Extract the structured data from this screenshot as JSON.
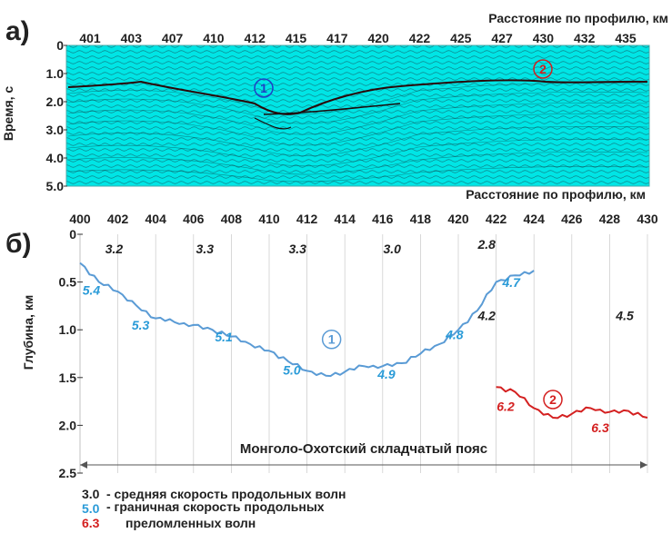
{
  "panel_a": {
    "letter": "а)",
    "axis_title_top": "Расстояние по профилю, км",
    "ylabel": "Время, с",
    "x_ticks": [
      "401",
      "403",
      "407",
      "410",
      "412",
      "415",
      "417",
      "420",
      "422",
      "425",
      "427",
      "430",
      "432",
      "435"
    ],
    "y_ticks": [
      "0",
      "1.0",
      "2.0",
      "3.0",
      "4.0",
      "5.0"
    ],
    "markers": [
      "1",
      "2"
    ],
    "colors": {
      "background": "#00e5e5",
      "marker_1": "#1e40c8",
      "marker_2": "#d02020"
    }
  },
  "panel_b": {
    "letter": "б)",
    "axis_title_top": "Расстояние по профилю, км",
    "ylabel": "Глубина, км",
    "belt_label": "Монголо-Охотский складчатый пояс",
    "x_ticks": [
      "400",
      "402",
      "404",
      "406",
      "408",
      "410",
      "412",
      "414",
      "416",
      "418",
      "420",
      "422",
      "424",
      "426",
      "428",
      "430"
    ],
    "y_ticks": [
      "0",
      "0.5",
      "1.0",
      "1.5",
      "2.0",
      "2.5"
    ],
    "avg_velocity_labels": [
      "3.2",
      "3.3",
      "3.3",
      "3.0",
      "2.8",
      "4.2",
      "4.5"
    ],
    "boundary_velocity_labels_1": [
      "5.4",
      "5.3",
      "5.1",
      "5.0",
      "4.9",
      "4.8",
      "4.7"
    ],
    "boundary_velocity_labels_2": [
      "6.2",
      "6.3"
    ],
    "markers": [
      "1",
      "2"
    ],
    "colors": {
      "line_1": "#5a9bd5",
      "line_2": "#d42020",
      "avg_text": "#222222",
      "v1_text": "#2a9bd8",
      "v2_text": "#d42020"
    }
  },
  "legend": {
    "items": [
      {
        "value": "3.0",
        "text": "- средняя скорость продольных волн"
      },
      {
        "value": "5.0",
        "text": "- граничная скорость продольных"
      },
      {
        "value": "6.3",
        "text": "преломленных волн"
      }
    ]
  },
  "chart_data": {
    "type": "line",
    "xlabel": "Расстояние по профилю, км",
    "ylabel": "Глубина, км",
    "xlim": [
      400,
      430
    ],
    "ylim": [
      2.5,
      0
    ],
    "series": [
      {
        "x": [
          400,
          401,
          402,
          403,
          404,
          405,
          406,
          407,
          408,
          409,
          410,
          411,
          412,
          413,
          414,
          415,
          416,
          417,
          418,
          419,
          420,
          421,
          422,
          423,
          424
        ],
        "values": [
          0.3,
          0.5,
          0.6,
          0.75,
          0.88,
          0.92,
          0.95,
          1.0,
          1.07,
          1.15,
          1.22,
          1.33,
          1.43,
          1.48,
          1.44,
          1.38,
          1.38,
          1.35,
          1.25,
          1.15,
          1.0,
          0.8,
          0.5,
          0.43,
          0.38
        ]
      },
      {
        "x": [
          422,
          423,
          424,
          425,
          426,
          427,
          428,
          429,
          430
        ],
        "values": [
          1.6,
          1.65,
          1.82,
          1.92,
          1.88,
          1.82,
          1.86,
          1.85,
          1.92
        ]
      }
    ]
  }
}
